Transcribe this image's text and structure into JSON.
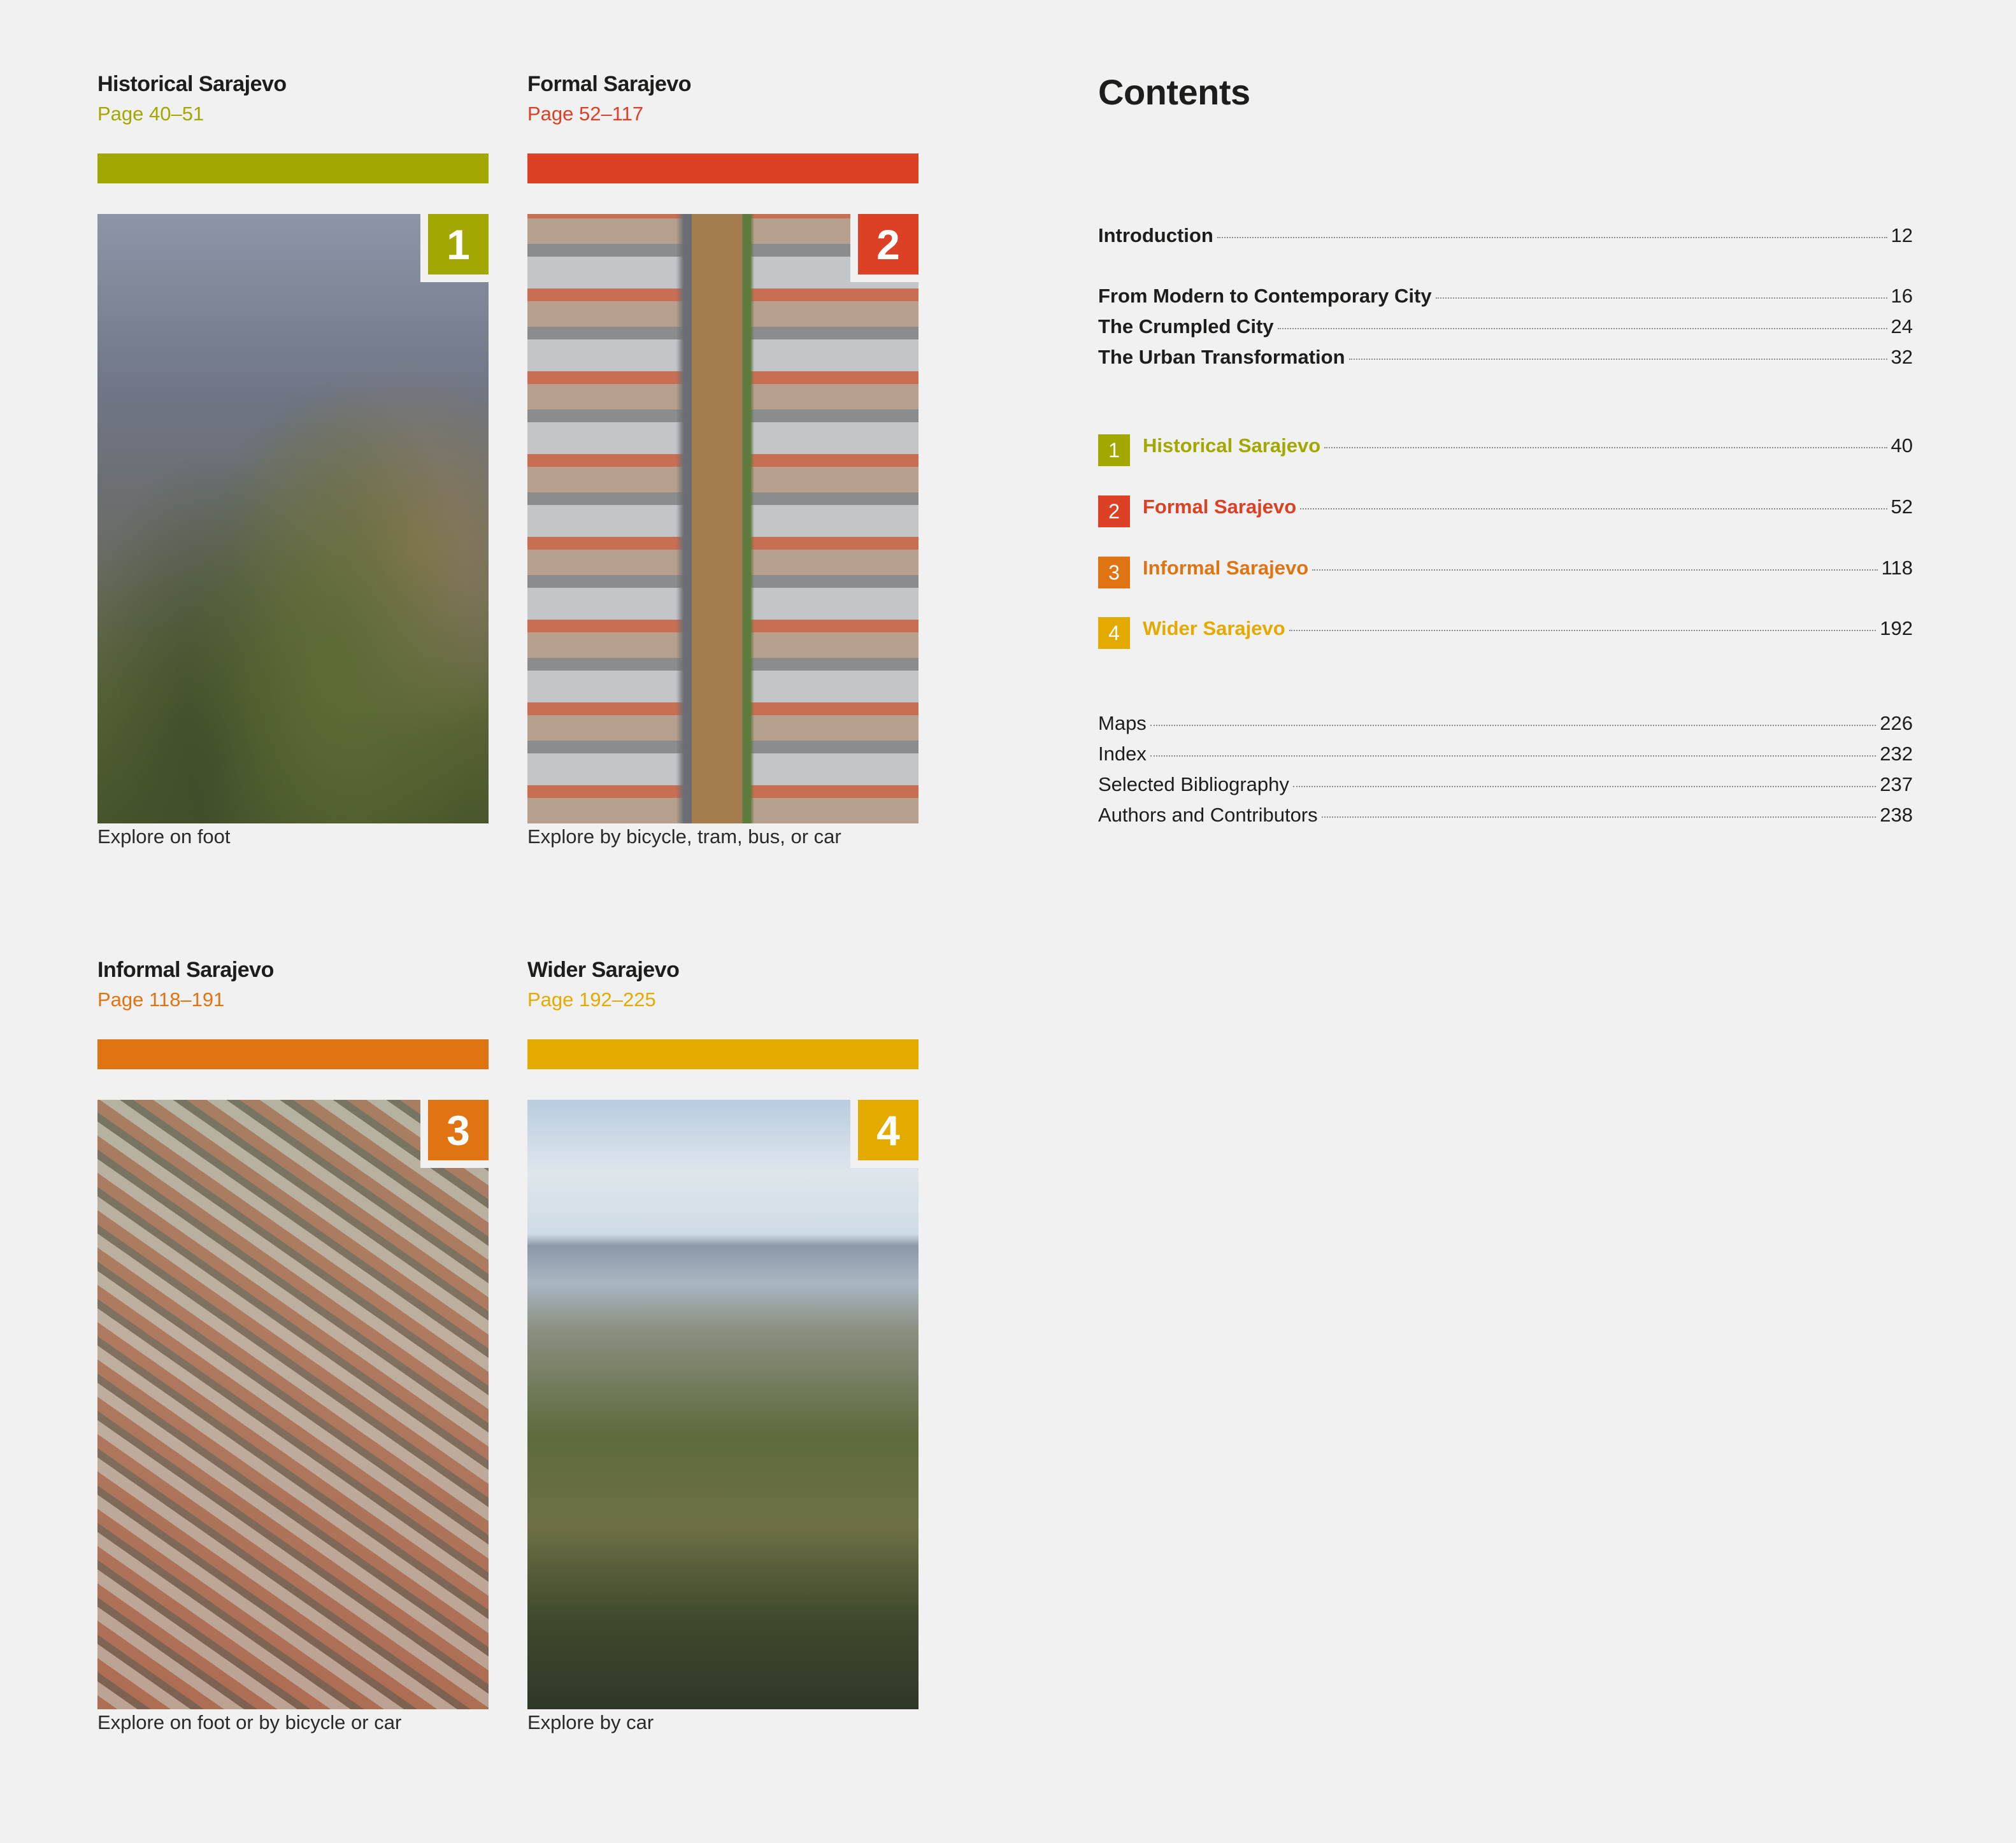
{
  "sections": [
    {
      "title": "Historical Sarajevo",
      "pages": "Page 40–51",
      "number": "1",
      "caption": "Explore on foot",
      "color": "#a3a800"
    },
    {
      "title": "Formal Sarajevo",
      "pages": "Page 52–117",
      "number": "2",
      "caption": "Explore by bicycle, tram, bus, or car",
      "color": "#dc4126"
    },
    {
      "title": "Informal Sarajevo",
      "pages": "Page 118–191",
      "number": "3",
      "caption": "Explore on foot or by bicycle or car",
      "color": "#e07412"
    },
    {
      "title": "Wider Sarajevo",
      "pages": "Page 192–225",
      "number": "4",
      "caption": "Explore by car",
      "color": "#e3aa00"
    }
  ],
  "contents": {
    "title": "Contents",
    "intro": [
      {
        "label": "Introduction",
        "page": "12"
      }
    ],
    "essays": [
      {
        "label": "From Modern to Contemporary City",
        "page": "16"
      },
      {
        "label": "The Crumpled City",
        "page": "24"
      },
      {
        "label": "The Urban Transformation",
        "page": "32"
      }
    ],
    "chapters": [
      {
        "number": "1",
        "label": "Historical Sarajevo",
        "page": "40",
        "color": "#a3a800"
      },
      {
        "number": "2",
        "label": "Formal Sarajevo",
        "page": "52",
        "color": "#dc4126"
      },
      {
        "number": "3",
        "label": "Informal Sarajevo",
        "page": "118",
        "color": "#e07412"
      },
      {
        "number": "4",
        "label": "Wider Sarajevo",
        "page": "192",
        "color": "#e3aa00"
      }
    ],
    "appendix": [
      {
        "label": "Maps",
        "page": "226"
      },
      {
        "label": "Index",
        "page": "232"
      },
      {
        "label": "Selected Bibliography",
        "page": "237"
      },
      {
        "label": "Authors and Contributors",
        "page": "238"
      }
    ]
  }
}
